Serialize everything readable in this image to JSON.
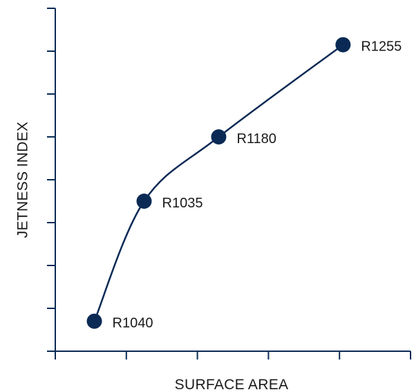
{
  "chart_data": {
    "type": "line",
    "title": "",
    "xlabel": "SURFACE AREA",
    "ylabel": "JETNESS INDEX",
    "x_ticks_count": 5,
    "y_ticks_count": 8,
    "xlim": [
      0,
      5
    ],
    "ylim": [
      0,
      8
    ],
    "grid": false,
    "legend": "none",
    "series": [
      {
        "points": [
          {
            "label": "R1040",
            "x": 0.55,
            "y": 0.7
          },
          {
            "label": "R1035",
            "x": 1.25,
            "y": 3.5
          },
          {
            "label": "R1180",
            "x": 2.3,
            "y": 5.0
          },
          {
            "label": "R1255",
            "x": 4.05,
            "y": 7.15
          }
        ]
      }
    ],
    "colors": {
      "axis": "#0a2a55",
      "line": "#0a2a55",
      "marker": "#0a2a55",
      "text": "#1a1a1a"
    }
  }
}
